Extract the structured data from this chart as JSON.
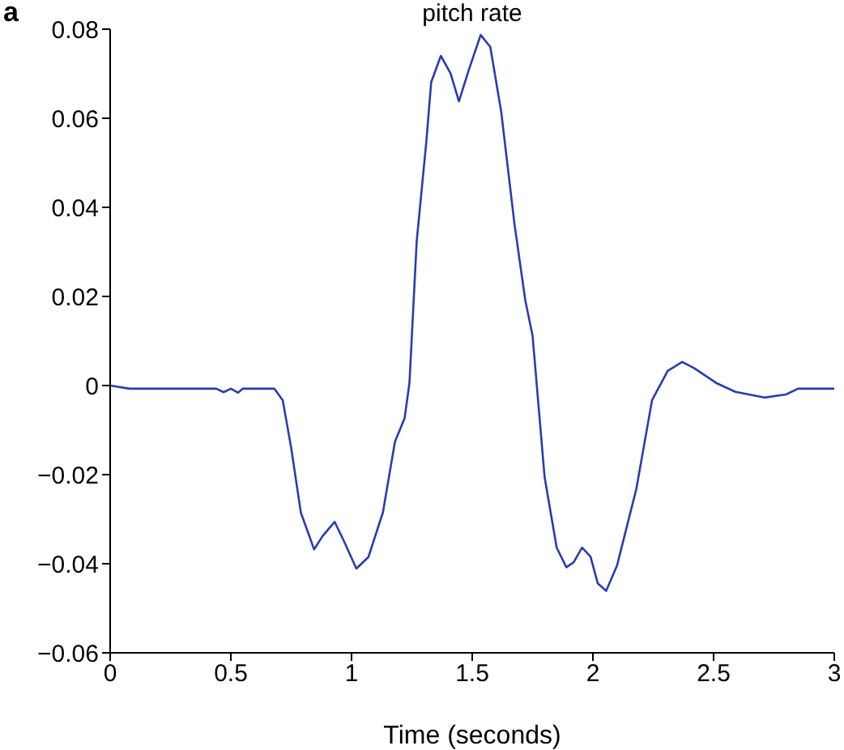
{
  "chart_data": {
    "type": "line",
    "title": "pitch rate",
    "xlabel": "Time (seconds)",
    "annotations": [
      "a"
    ],
    "xlim": [
      0,
      3
    ],
    "xticks": [
      0,
      0.5,
      1,
      1.5,
      2,
      2.5,
      3
    ],
    "ylim": [
      -0.06,
      0.08
    ],
    "yticks": [
      {
        "value": -0.06,
        "label": "−0.06"
      },
      {
        "value": -0.04,
        "label": "−0.04"
      },
      {
        "value": -0.02,
        "label": "−0.02"
      },
      0,
      0.02,
      0.04,
      0.06,
      0.08
    ],
    "grid": false,
    "legend": false,
    "marker": "none",
    "line_style": "solid",
    "series": [
      {
        "color": "#2a3cb0",
        "x": [
          0,
          0.08,
          0.44,
          0.47,
          0.5,
          0.53,
          0.55,
          0.68,
          0.715,
          0.75,
          0.79,
          0.845,
          0.88,
          0.93,
          0.97,
          1.02,
          1.07,
          1.13,
          1.18,
          1.22,
          1.24,
          1.27,
          1.31,
          1.33,
          1.37,
          1.41,
          1.445,
          1.485,
          1.535,
          1.575,
          1.62,
          1.675,
          1.72,
          1.75,
          1.8,
          1.85,
          1.89,
          1.92,
          1.955,
          1.99,
          2.02,
          2.055,
          2.1,
          2.18,
          2.245,
          2.31,
          2.37,
          2.42,
          2.51,
          2.59,
          2.71,
          2.8,
          2.85,
          3
        ],
        "values": [
          0,
          -0.0007,
          -0.0007,
          -0.0015,
          -0.0007,
          -0.0016,
          -0.0007,
          -0.0007,
          -0.0033,
          -0.014,
          -0.0285,
          -0.0368,
          -0.0338,
          -0.0306,
          -0.0351,
          -0.0411,
          -0.0385,
          -0.0285,
          -0.0126,
          -0.0073,
          0.0006,
          0.0324,
          0.0548,
          0.0681,
          0.074,
          0.0701,
          0.0638,
          0.0707,
          0.0787,
          0.076,
          0.0615,
          0.0363,
          0.0191,
          0.0112,
          -0.0206,
          -0.0364,
          -0.0408,
          -0.0397,
          -0.0364,
          -0.0384,
          -0.0444,
          -0.0461,
          -0.0404,
          -0.0232,
          -0.0033,
          0.0033,
          0.0053,
          0.0039,
          0.0006,
          -0.0014,
          -0.0027,
          -0.002,
          -0.0007,
          -0.0007
        ]
      }
    ]
  }
}
